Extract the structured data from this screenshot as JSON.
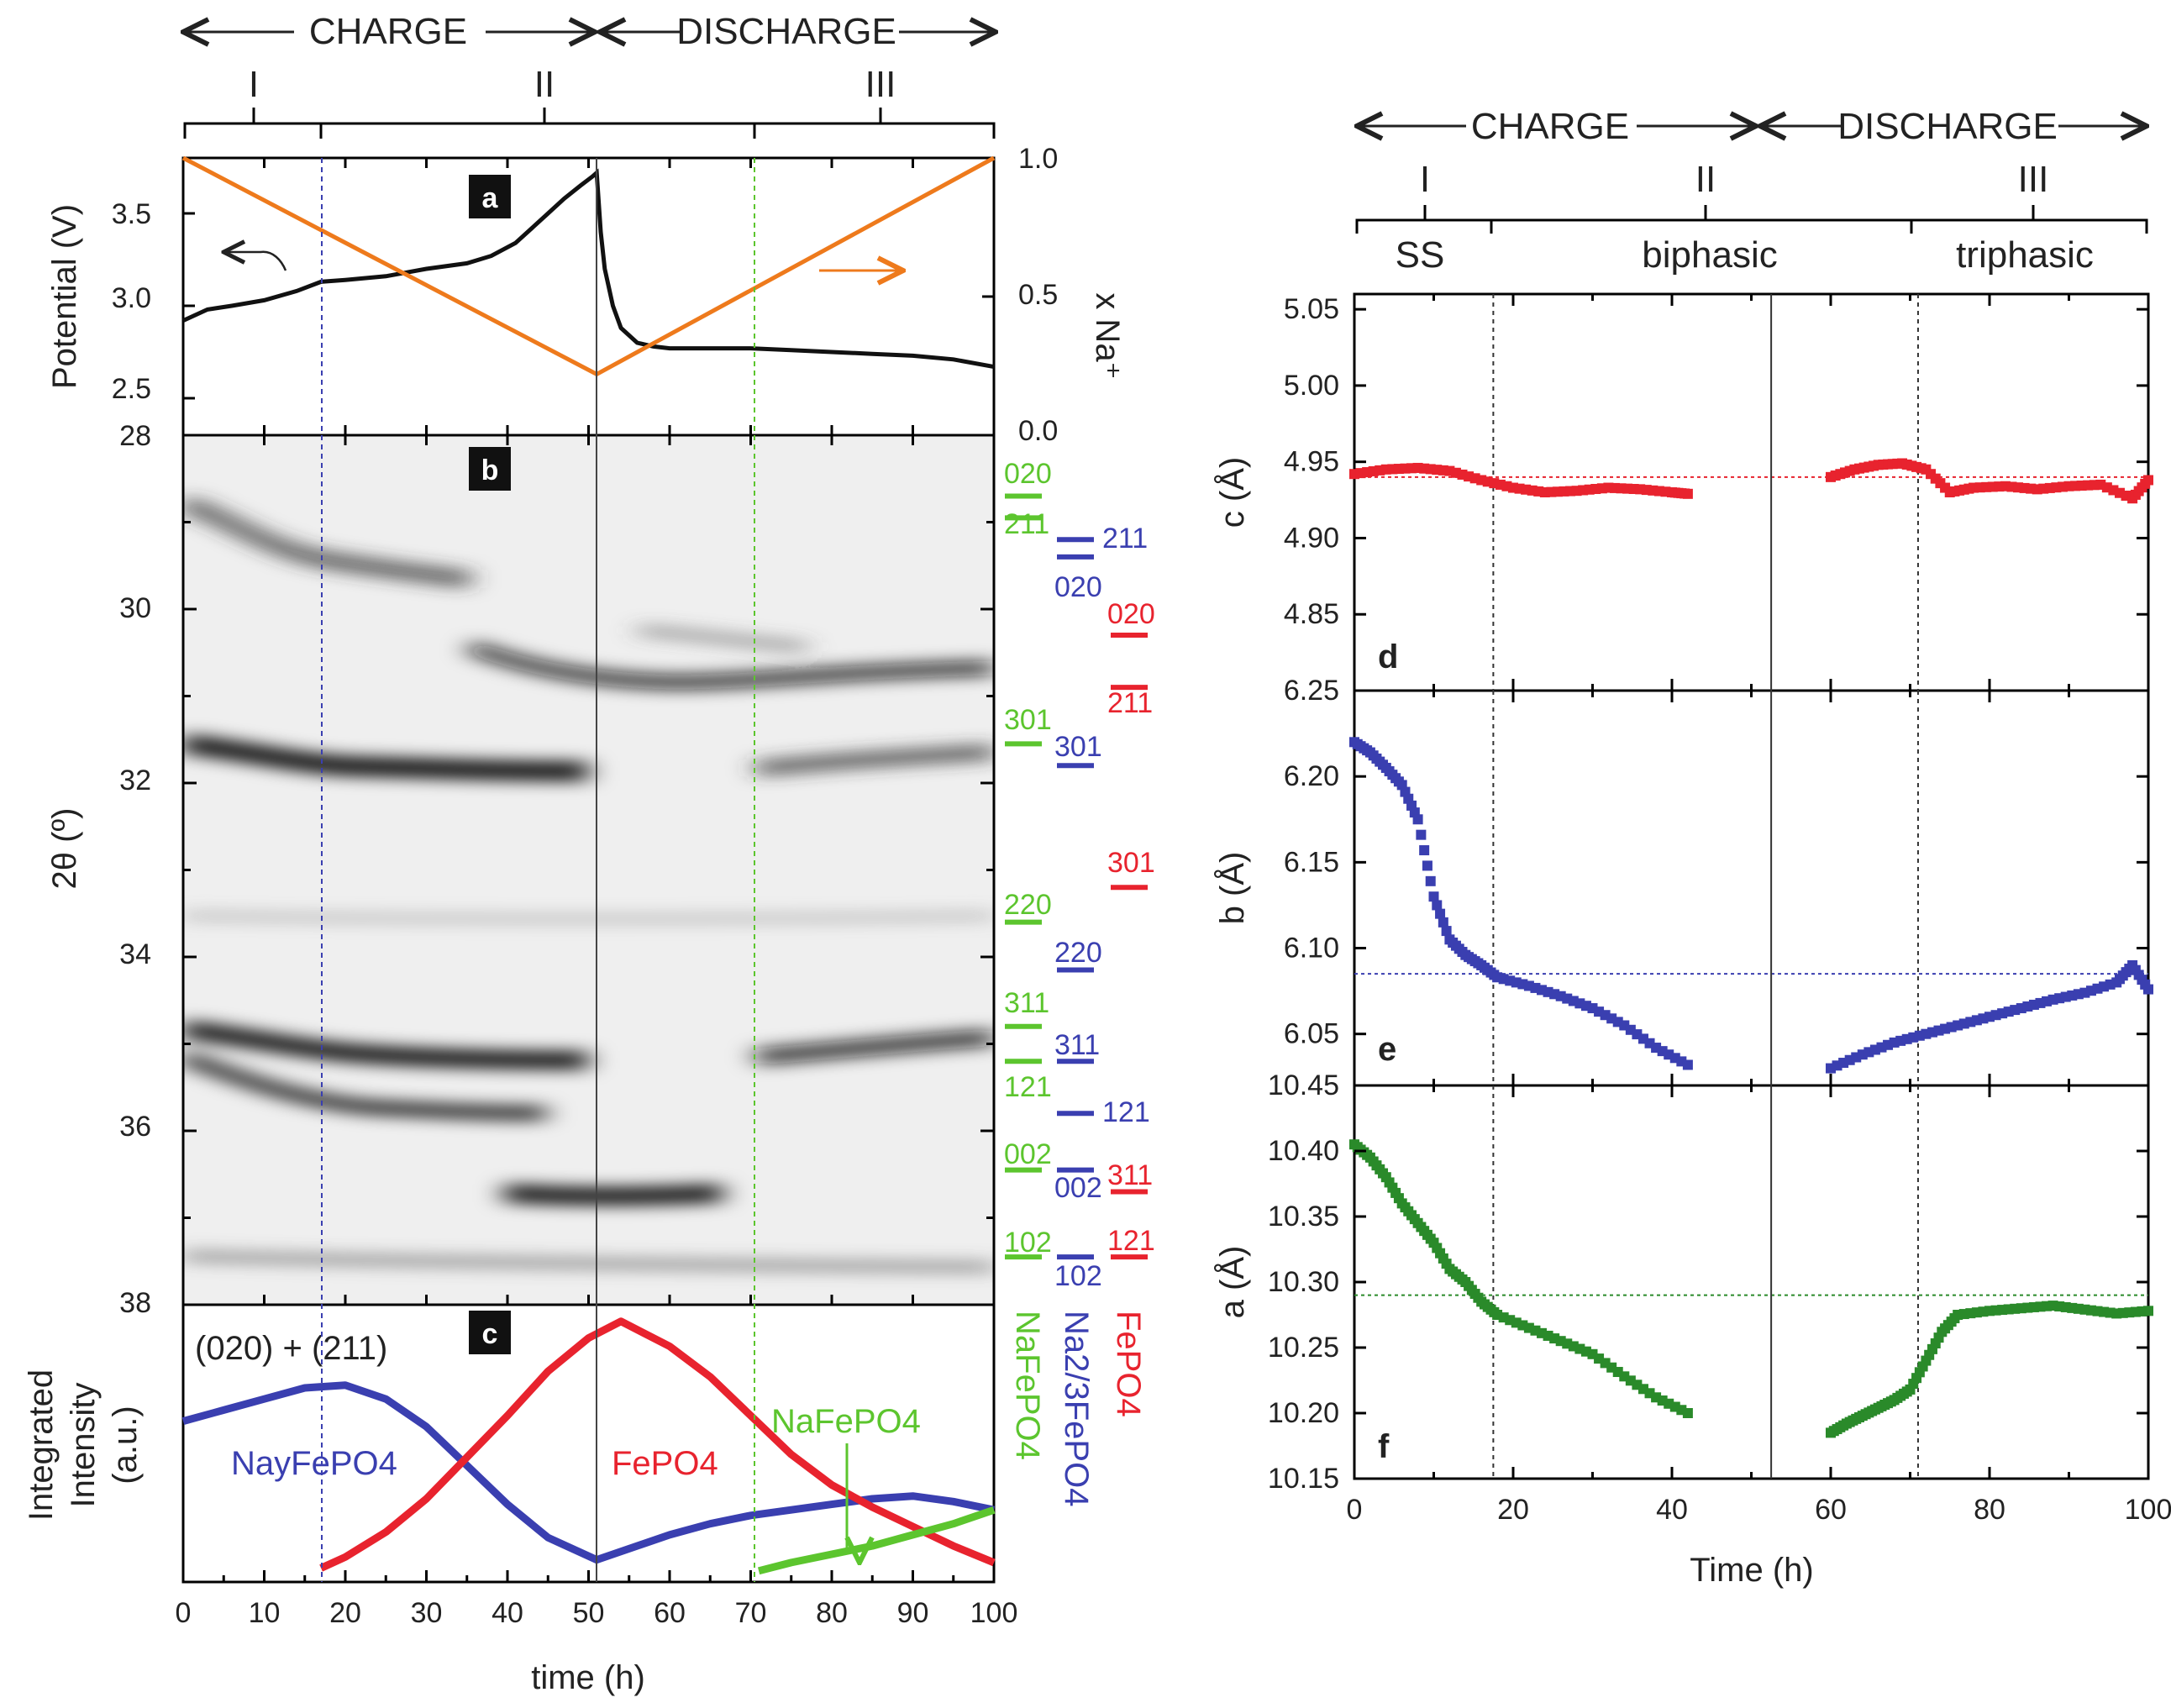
{
  "left_figure": {
    "header": {
      "charge": "CHARGE",
      "discharge": "DISCHARGE",
      "regions": [
        "I",
        "II",
        "III"
      ]
    },
    "panel_a": {
      "tag": "a",
      "ylabel_left": "Potential (V)",
      "ylabel_right": "x Na⁺",
      "yticks_left": [
        "2.5",
        "3.0",
        "3.5"
      ],
      "yticks_right": [
        "0.0",
        "0.5",
        "1.0"
      ]
    },
    "panel_b": {
      "tag": "b",
      "ylabel": "2θ (º)",
      "yticks": [
        "28",
        "30",
        "32",
        "34",
        "36",
        "38"
      ]
    },
    "panel_c": {
      "tag": "c",
      "ylabel_line1": "Integrated",
      "ylabel_line2": "Intensity",
      "ylabel_line3": "(a.u.)",
      "annotation": "(020) + (211)",
      "label_nay": "NayFePO4",
      "label_fepo4": "FePO4",
      "label_nafepo4": "NaFePO4",
      "xlabel": "time (h)",
      "xticks": [
        "0",
        "10",
        "20",
        "30",
        "40",
        "50",
        "60",
        "70",
        "80",
        "90",
        "100"
      ]
    },
    "refs": {
      "phase_green": "NaFePO4",
      "phase_blue": "Na2/3FePO4",
      "phase_red": "FePO4",
      "green": [
        "020",
        "211",
        "301",
        "220",
        "311",
        "121",
        "002",
        "102"
      ],
      "blue": [
        "211",
        "020",
        "301",
        "220",
        "311",
        "121",
        "002",
        "102"
      ],
      "red": [
        "020",
        "211",
        "301",
        "311",
        "121"
      ]
    }
  },
  "right_figure": {
    "header": {
      "charge": "CHARGE",
      "discharge": "DISCHARGE",
      "regions": [
        "I",
        "II",
        "III"
      ],
      "phases": [
        "SS",
        "biphasic",
        "triphasic"
      ]
    },
    "panel_d": {
      "tag": "d",
      "ylabel": "c (Å)",
      "yticks": [
        "4.85",
        "4.90",
        "4.95",
        "5.00",
        "5.05"
      ]
    },
    "panel_e": {
      "tag": "e",
      "ylabel": "b (Å)",
      "yticks": [
        "6.05",
        "6.10",
        "6.15",
        "6.20",
        "6.25"
      ]
    },
    "panel_f": {
      "tag": "f",
      "ylabel": "a (Å)",
      "yticks": [
        "10.15",
        "10.20",
        "10.25",
        "10.30",
        "10.35",
        "10.40",
        "10.45"
      ]
    },
    "xlabel": "Time (h)",
    "xticks": [
      "0",
      "20",
      "40",
      "60",
      "80",
      "100"
    ]
  },
  "colors": {
    "black": "#111111",
    "orange": "#ee7a1c",
    "blue": "#3a3fb0",
    "red": "#e8232e",
    "green": "#5cc52e",
    "dark_green": "#2a8a2a",
    "grey": "#888888"
  },
  "chart_data": [
    {
      "id": "a",
      "type": "line",
      "title": "",
      "xlabel": "time (h)",
      "ylabel": "Potential (V)",
      "ylabel_right": "x Na+",
      "xlim": [
        0,
        100
      ],
      "ylim": [
        2.3,
        3.8
      ],
      "ylim_right": [
        0,
        1
      ],
      "series": [
        {
          "name": "Potential",
          "axis": "left",
          "x": [
            0,
            3,
            6,
            10,
            14,
            17,
            20,
            25,
            30,
            35,
            38,
            41,
            43,
            45,
            47,
            49,
            50.5,
            51,
            51.5,
            52,
            53,
            54,
            56,
            58,
            60,
            65,
            70,
            75,
            80,
            85,
            90,
            95,
            100
          ],
          "y": [
            2.92,
            2.98,
            3.0,
            3.03,
            3.08,
            3.13,
            3.14,
            3.16,
            3.2,
            3.23,
            3.27,
            3.34,
            3.42,
            3.5,
            3.58,
            3.65,
            3.7,
            3.72,
            3.4,
            3.2,
            3.0,
            2.88,
            2.8,
            2.78,
            2.77,
            2.77,
            2.77,
            2.76,
            2.75,
            2.74,
            2.73,
            2.71,
            2.67
          ]
        },
        {
          "name": "x Na+",
          "axis": "right",
          "x": [
            0,
            51,
            100
          ],
          "y": [
            1.0,
            0.22,
            1.0
          ]
        }
      ]
    },
    {
      "id": "c",
      "type": "line",
      "title": "(020) + (211)",
      "xlabel": "time (h)",
      "ylabel": "Integrated Intensity (a.u.)",
      "xlim": [
        0,
        100
      ],
      "ylim": [
        0,
        1
      ],
      "series": [
        {
          "name": "NayFePO4",
          "x": [
            0,
            5,
            10,
            15,
            20,
            25,
            30,
            35,
            40,
            45,
            51,
            55,
            60,
            65,
            70,
            75,
            80,
            85,
            90,
            95,
            100
          ],
          "y": [
            0.58,
            0.62,
            0.66,
            0.7,
            0.71,
            0.66,
            0.56,
            0.42,
            0.28,
            0.16,
            0.08,
            0.12,
            0.17,
            0.21,
            0.24,
            0.26,
            0.28,
            0.3,
            0.31,
            0.29,
            0.26
          ]
        },
        {
          "name": "FePO4",
          "x": [
            17,
            20,
            25,
            30,
            35,
            40,
            45,
            50,
            54,
            60,
            65,
            70,
            75,
            80,
            85,
            90,
            95,
            100
          ],
          "y": [
            0.05,
            0.09,
            0.18,
            0.3,
            0.45,
            0.6,
            0.76,
            0.88,
            0.94,
            0.85,
            0.74,
            0.6,
            0.46,
            0.35,
            0.27,
            0.2,
            0.13,
            0.07
          ]
        },
        {
          "name": "NaFePO4",
          "x": [
            71,
            75,
            80,
            85,
            90,
            95,
            100
          ],
          "y": [
            0.04,
            0.07,
            0.1,
            0.13,
            0.17,
            0.21,
            0.26
          ]
        }
      ]
    },
    {
      "id": "d",
      "type": "scatter",
      "ylabel": "c (Å)",
      "xlabel": "Time (h)",
      "xlim": [
        0,
        100
      ],
      "ylim": [
        4.8,
        5.06
      ],
      "reference": 4.94,
      "series": [
        {
          "name": "c",
          "x": [
            0,
            4,
            8,
            12,
            16,
            20,
            24,
            28,
            32,
            36,
            40,
            42,
            60,
            63,
            66,
            69,
            72,
            75,
            78,
            82,
            86,
            90,
            94,
            98,
            100
          ],
          "y": [
            4.942,
            4.945,
            4.946,
            4.944,
            4.938,
            4.933,
            4.93,
            4.931,
            4.933,
            4.932,
            4.93,
            4.929,
            4.94,
            4.945,
            4.948,
            4.949,
            4.945,
            4.93,
            4.933,
            4.934,
            4.932,
            4.934,
            4.935,
            4.926,
            4.938
          ]
        }
      ]
    },
    {
      "id": "e",
      "type": "scatter",
      "ylabel": "b (Å)",
      "xlabel": "Time (h)",
      "xlim": [
        0,
        100
      ],
      "ylim": [
        6.02,
        6.25
      ],
      "reference": 6.085,
      "series": [
        {
          "name": "b",
          "x": [
            0,
            2,
            4,
            6,
            8,
            10,
            12,
            14,
            16,
            18,
            22,
            26,
            30,
            34,
            38,
            42,
            60,
            64,
            68,
            72,
            76,
            80,
            84,
            88,
            92,
            96,
            98,
            100
          ],
          "y": [
            6.22,
            6.214,
            6.205,
            6.195,
            6.175,
            6.13,
            6.105,
            6.096,
            6.09,
            6.083,
            6.078,
            6.072,
            6.065,
            6.055,
            6.042,
            6.032,
            6.03,
            6.038,
            6.045,
            6.05,
            6.055,
            6.06,
            6.065,
            6.07,
            6.074,
            6.08,
            6.09,
            6.076
          ]
        }
      ]
    },
    {
      "id": "f",
      "type": "scatter",
      "ylabel": "a (Å)",
      "xlabel": "Time (h)",
      "xlim": [
        0,
        100
      ],
      "ylim": [
        10.15,
        10.45
      ],
      "reference": 10.29,
      "series": [
        {
          "name": "a",
          "x": [
            0,
            2,
            4,
            6,
            8,
            10,
            12,
            14,
            16,
            18,
            22,
            26,
            30,
            34,
            38,
            42,
            60,
            62,
            64,
            66,
            68,
            70,
            72,
            74,
            76,
            80,
            84,
            88,
            92,
            96,
            100
          ],
          "y": [
            10.405,
            10.395,
            10.38,
            10.36,
            10.345,
            10.33,
            10.31,
            10.3,
            10.285,
            10.275,
            10.265,
            10.255,
            10.245,
            10.228,
            10.212,
            10.2,
            10.185,
            10.192,
            10.198,
            10.204,
            10.21,
            10.218,
            10.24,
            10.262,
            10.275,
            10.278,
            10.28,
            10.282,
            10.279,
            10.276,
            10.278
          ]
        }
      ]
    }
  ]
}
